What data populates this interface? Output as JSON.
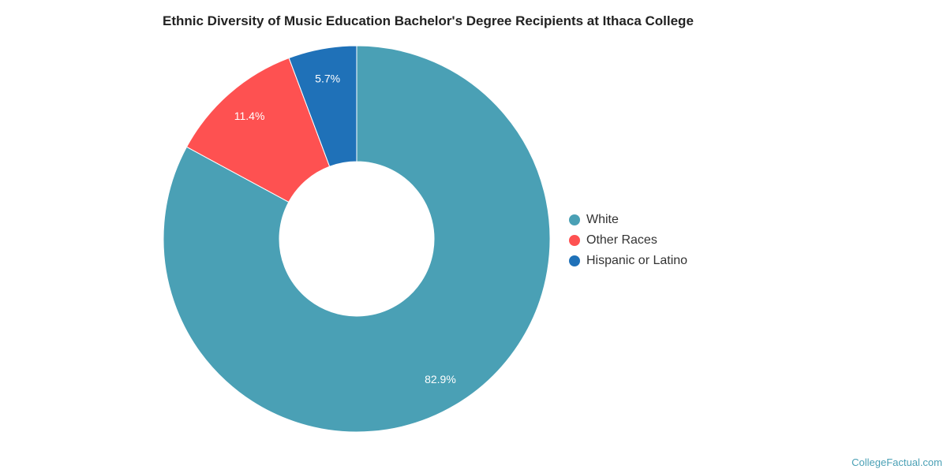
{
  "chart_data": {
    "type": "pie",
    "subtype": "donut",
    "title": "Ethnic Diversity of Music Education Bachelor's Degree Recipients at Ithaca College",
    "categories": [
      "White",
      "Other Races",
      "Hispanic or Latino"
    ],
    "values": [
      82.9,
      11.4,
      5.7
    ],
    "value_labels": [
      "82.9%",
      "11.4%",
      "5.7%"
    ],
    "colors": [
      "#4aa0b5",
      "#fe5151",
      "#1f71b8"
    ],
    "legend_position": "right"
  },
  "credit": "CollegeFactual.com"
}
